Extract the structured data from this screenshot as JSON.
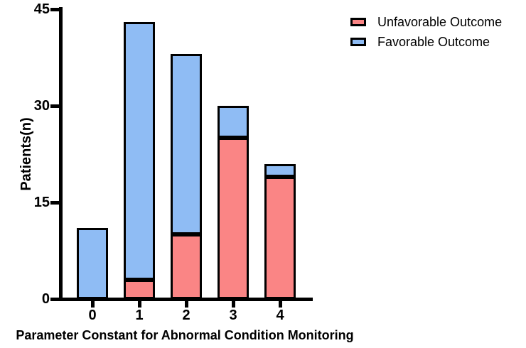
{
  "chart_data": {
    "type": "bar",
    "stacked": true,
    "categories": [
      "0",
      "1",
      "2",
      "3",
      "4"
    ],
    "series": [
      {
        "name": "Unfavorable Outcome",
        "color": "#FA8585",
        "values": [
          0,
          3,
          10,
          25,
          19
        ]
      },
      {
        "name": "Favorable Outcome",
        "color": "#8FBCF4",
        "values": [
          11,
          40,
          28,
          5,
          2
        ]
      }
    ],
    "totals": [
      11,
      43,
      38,
      30,
      21
    ],
    "title": "",
    "xlabel": "Parameter Constant for Abnormal Condition Monitoring",
    "ylabel": "Patients(n)",
    "ylim": [
      0,
      45
    ],
    "yticks": [
      0,
      15,
      30,
      45
    ],
    "grid": false,
    "legend_position": "top-right",
    "background": "#FFFFFF",
    "axis_color": "#000000",
    "bar_border_color": "#000000"
  }
}
